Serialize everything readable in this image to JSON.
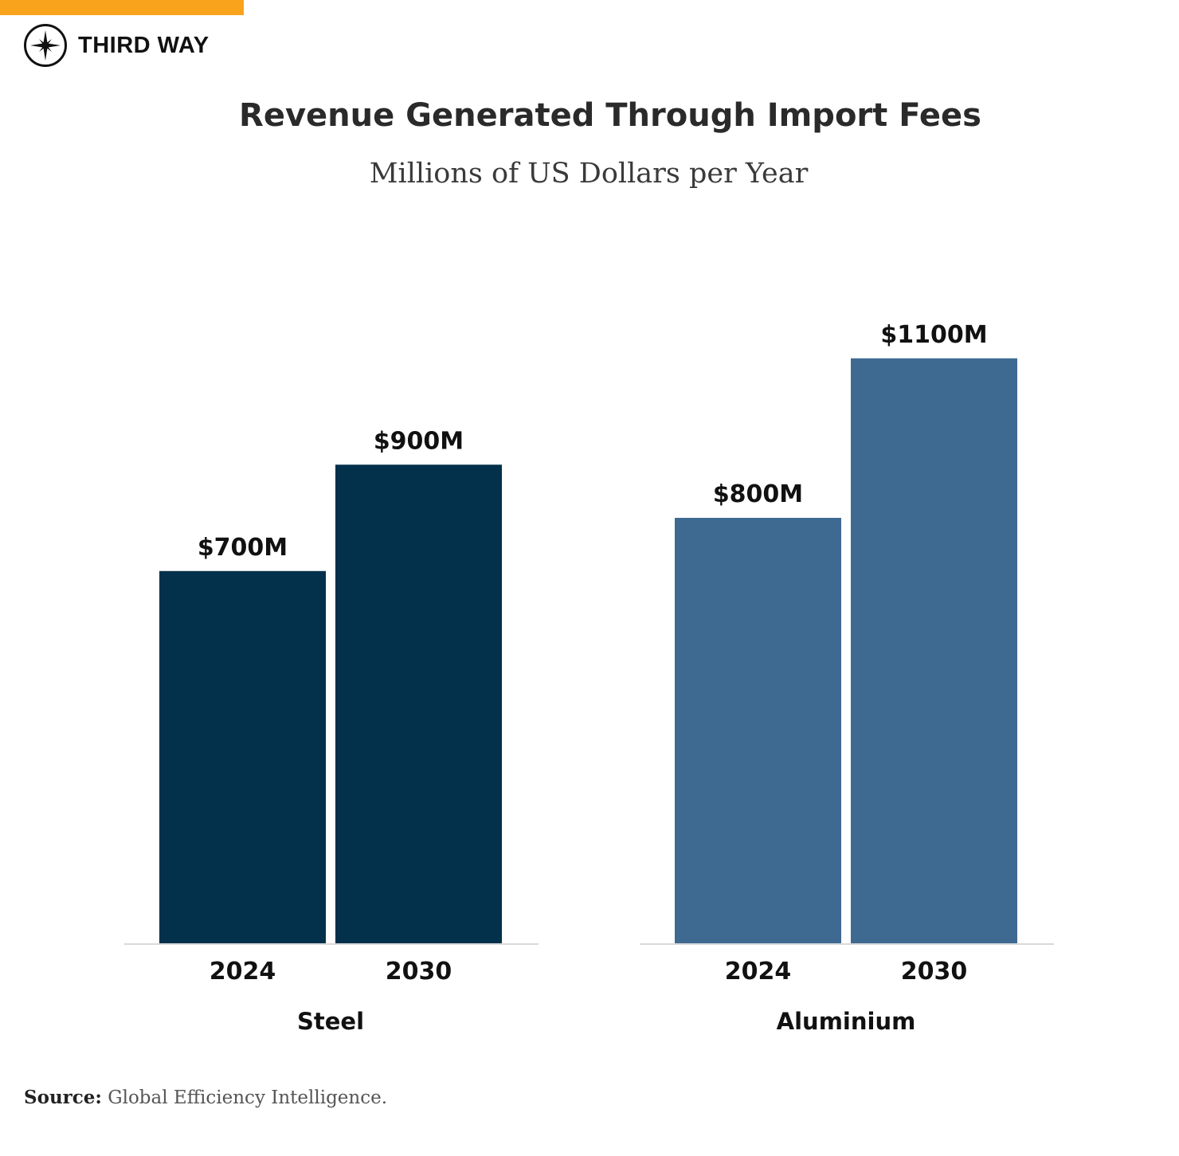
{
  "brand": {
    "name": "THIRD WAY",
    "logo_icon": "compass-star-icon",
    "accent_color": "#F9A31C"
  },
  "source": {
    "label": "Source:",
    "text": "Global Efficiency Intelligence."
  },
  "chart_data": {
    "type": "bar",
    "title": "Revenue Generated Through Import Fees",
    "subtitle": "Millions of US Dollars per Year",
    "xlabel": "",
    "ylabel": "",
    "ylim": [
      0,
      1300
    ],
    "grid": false,
    "legend": "none",
    "groups": [
      {
        "name": "Steel",
        "color": "#03304B",
        "categories": [
          "2024",
          "2030"
        ],
        "values": [
          700,
          900
        ],
        "labels": [
          "$700M",
          "$900M"
        ]
      },
      {
        "name": "Aluminium",
        "color": "#3E6A92",
        "categories": [
          "2024",
          "2030"
        ],
        "values": [
          800,
          1100
        ],
        "labels": [
          "$800M",
          "$1100M"
        ]
      }
    ]
  }
}
